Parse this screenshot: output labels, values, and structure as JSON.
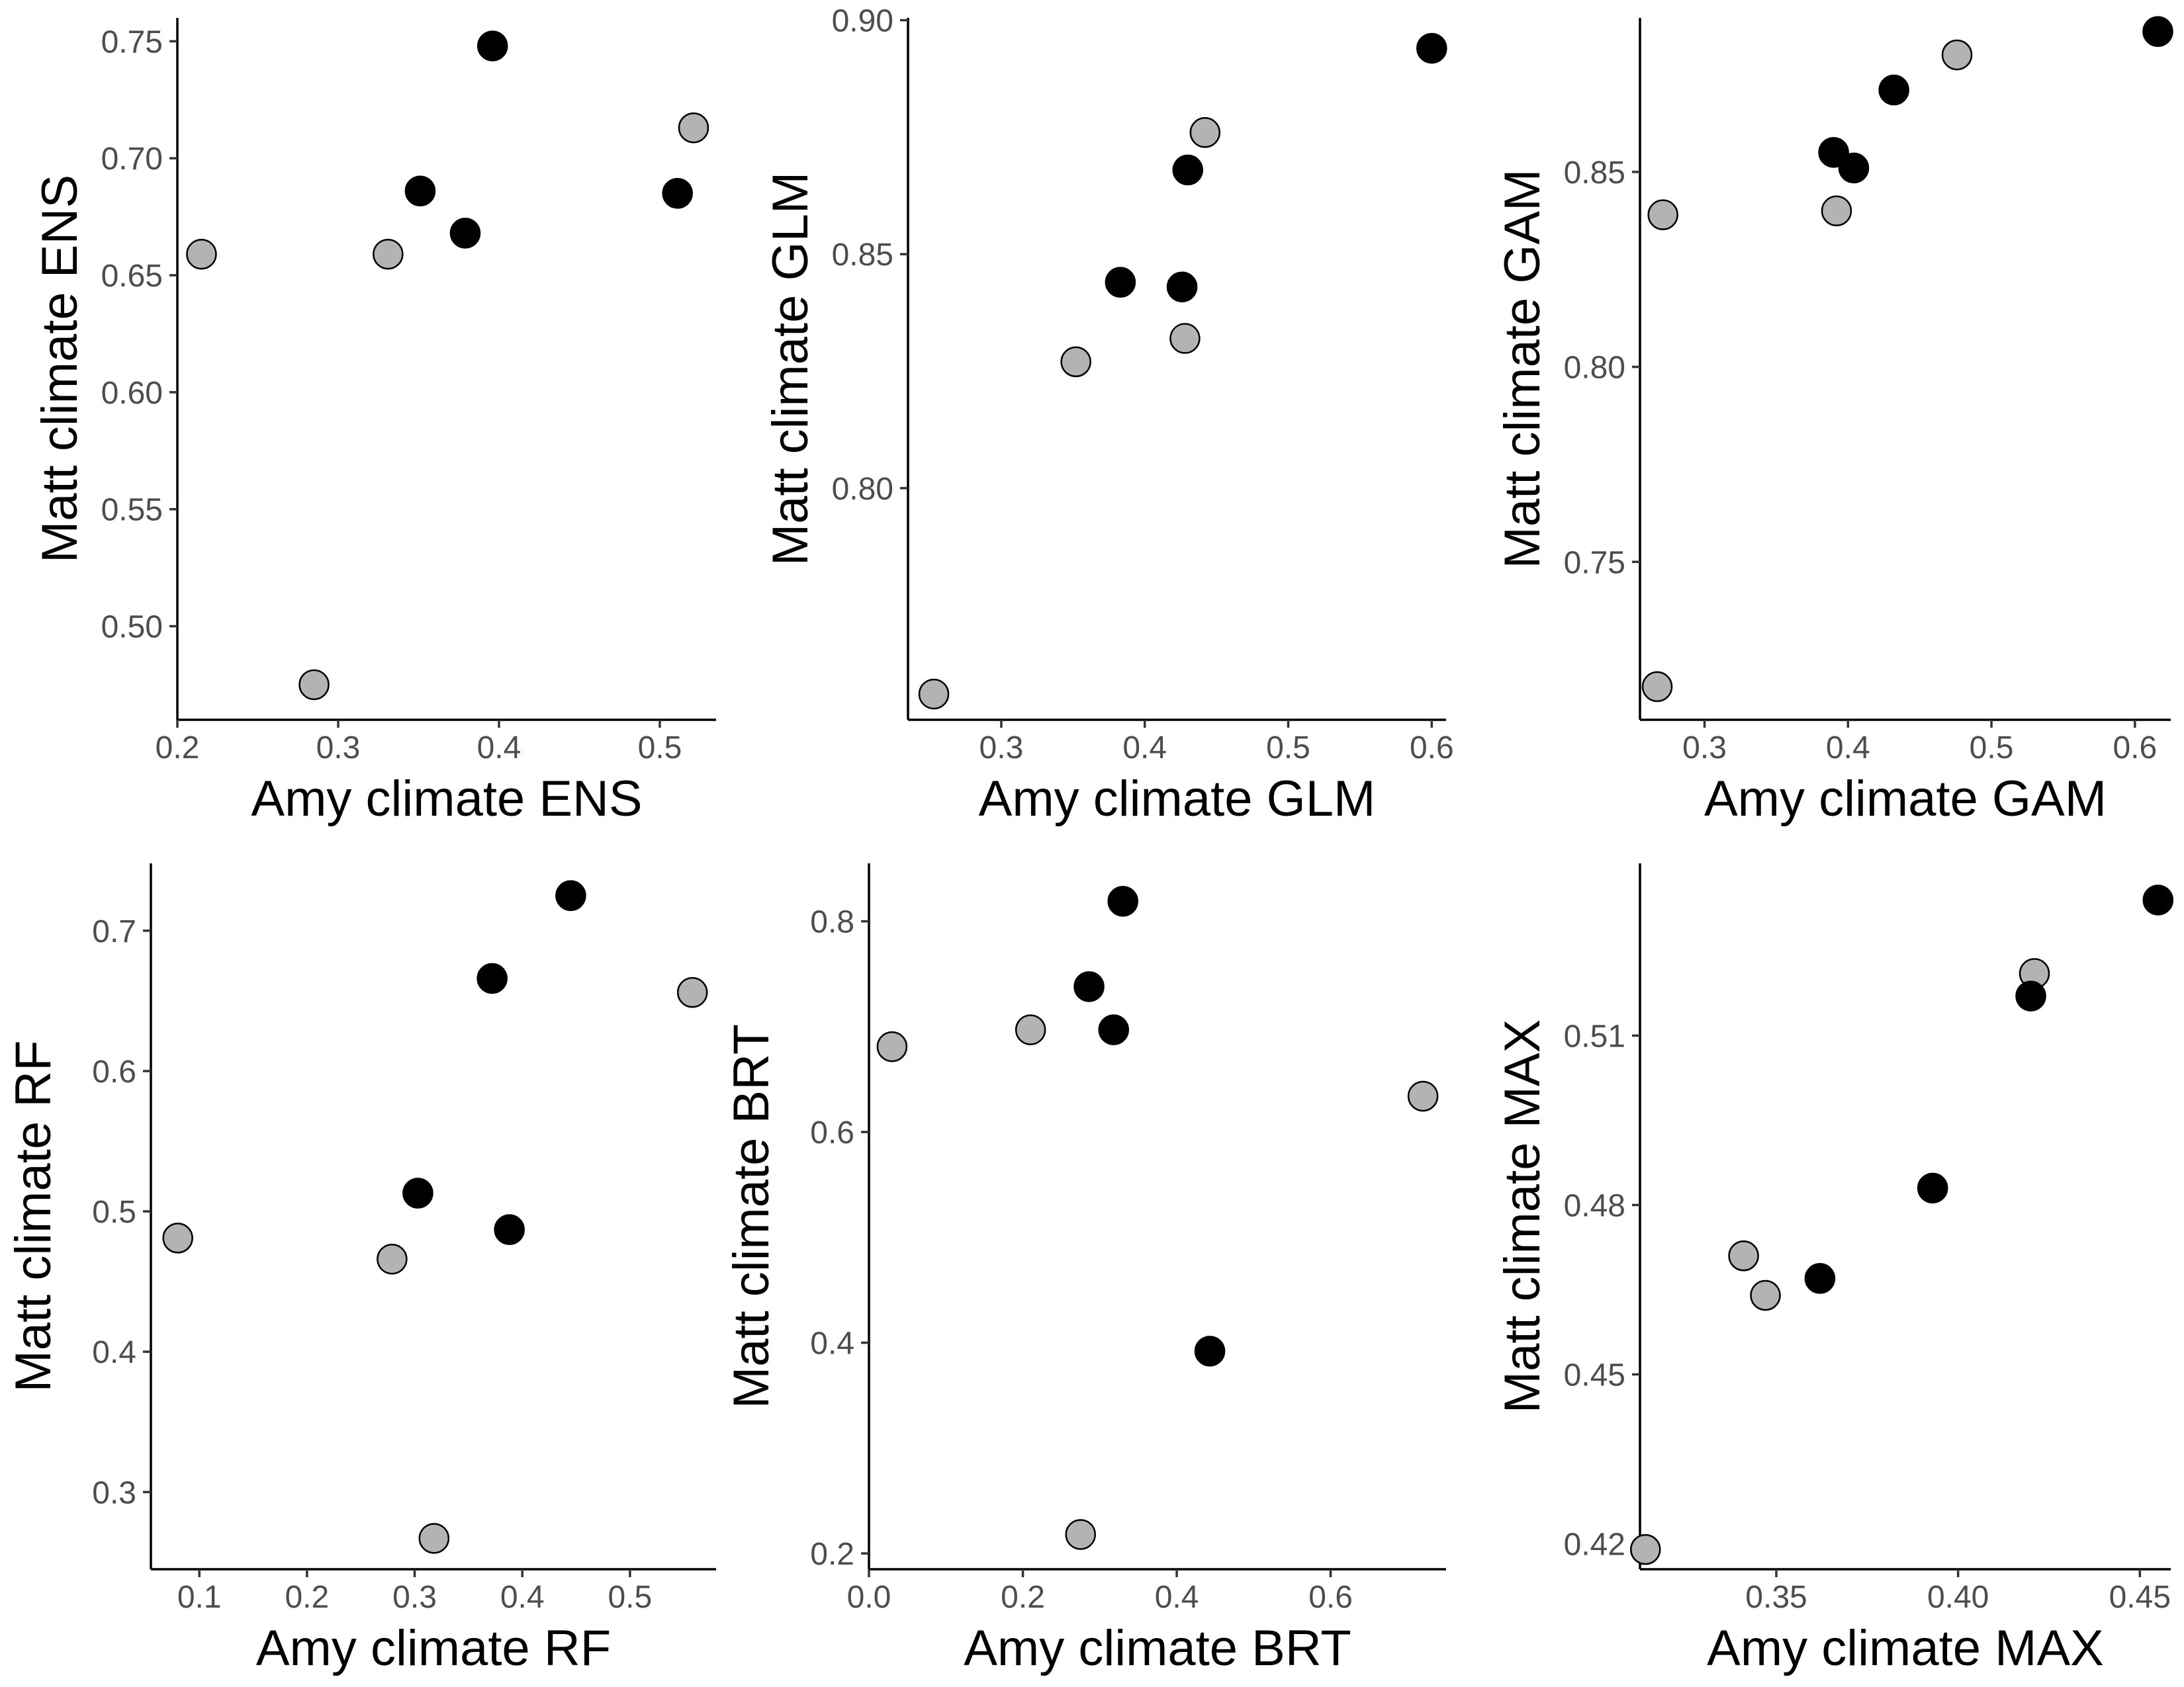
{
  "colors": {
    "grey_point": "#b3b3b3",
    "black_point": "#000000",
    "point_outline": "#000000"
  },
  "chart_data": [
    {
      "type": "scatter",
      "xlabel": "Amy climate ENS",
      "ylabel": "Matt climate ENS",
      "xlim": [
        0.2,
        0.535
      ],
      "ylim": [
        0.46,
        0.76
      ],
      "xticks": [
        0.2,
        0.3,
        0.4,
        0.5
      ],
      "xtick_labels": [
        "0.2",
        "0.3",
        "0.4",
        "0.5"
      ],
      "yticks": [
        0.5,
        0.55,
        0.6,
        0.65,
        0.7,
        0.75
      ],
      "ytick_labels": [
        "0.50",
        "0.55",
        "0.60",
        "0.65",
        "0.70",
        "0.75"
      ],
      "grid": false,
      "legend": "none",
      "series": [
        {
          "color": "#b3b3b3",
          "points": [
            [
              0.215,
              0.659
            ],
            [
              0.285,
              0.475
            ],
            [
              0.331,
              0.659
            ],
            [
              0.521,
              0.713
            ]
          ]
        },
        {
          "color": "#000000",
          "points": [
            [
              0.351,
              0.686
            ],
            [
              0.379,
              0.668
            ],
            [
              0.396,
              0.748
            ],
            [
              0.511,
              0.685
            ]
          ]
        }
      ]
    },
    {
      "type": "scatter",
      "xlabel": "Amy climate GLM",
      "ylabel": "Matt climate GLM",
      "xlim": [
        0.235,
        0.61
      ],
      "ylim": [
        0.7505,
        0.9005
      ],
      "xticks": [
        0.3,
        0.4,
        0.5,
        0.6
      ],
      "xtick_labels": [
        "0.3",
        "0.4",
        "0.5",
        "0.6"
      ],
      "yticks": [
        0.8,
        0.85,
        0.9
      ],
      "ytick_labels": [
        "0.80",
        "0.85",
        "0.90"
      ],
      "grid": false,
      "legend": "none",
      "series": [
        {
          "color": "#b3b3b3",
          "points": [
            [
              0.253,
              0.756
            ],
            [
              0.352,
              0.827
            ],
            [
              0.428,
              0.832
            ],
            [
              0.442,
              0.876
            ]
          ]
        },
        {
          "color": "#000000",
          "points": [
            [
              0.383,
              0.844
            ],
            [
              0.426,
              0.843
            ],
            [
              0.43,
              0.868
            ],
            [
              0.6,
              0.894
            ]
          ]
        }
      ]
    },
    {
      "type": "scatter",
      "xlabel": "Amy climate GAM",
      "ylabel": "Matt climate GAM",
      "xlim": [
        0.255,
        0.625
      ],
      "ylim": [
        0.7095,
        0.8895
      ],
      "xticks": [
        0.3,
        0.4,
        0.5,
        0.6
      ],
      "xtick_labels": [
        "0.3",
        "0.4",
        "0.5",
        "0.6"
      ],
      "yticks": [
        0.75,
        0.8,
        0.85
      ],
      "ytick_labels": [
        "0.75",
        "0.80",
        "0.85"
      ],
      "grid": false,
      "legend": "none",
      "series": [
        {
          "color": "#b3b3b3",
          "points": [
            [
              0.267,
              0.718
            ],
            [
              0.271,
              0.839
            ],
            [
              0.392,
              0.84
            ],
            [
              0.476,
              0.88
            ]
          ]
        },
        {
          "color": "#000000",
          "points": [
            [
              0.39,
              0.855
            ],
            [
              0.404,
              0.851
            ],
            [
              0.432,
              0.871
            ],
            [
              0.616,
              0.886
            ]
          ]
        }
      ]
    },
    {
      "type": "scatter",
      "xlabel": "Amy climate RF",
      "ylabel": "Matt climate RF",
      "xlim": [
        0.055,
        0.58
      ],
      "ylim": [
        0.245,
        0.748
      ],
      "xticks": [
        0.1,
        0.2,
        0.3,
        0.4,
        0.5
      ],
      "xtick_labels": [
        "0.1",
        "0.2",
        "0.3",
        "0.4",
        "0.5"
      ],
      "yticks": [
        0.3,
        0.4,
        0.5,
        0.6,
        0.7
      ],
      "ytick_labels": [
        "0.3",
        "0.4",
        "0.5",
        "0.6",
        "0.7"
      ],
      "grid": false,
      "legend": "none",
      "series": [
        {
          "color": "#b3b3b3",
          "points": [
            [
              0.08,
              0.481
            ],
            [
              0.279,
              0.466
            ],
            [
              0.318,
              0.267
            ],
            [
              0.558,
              0.656
            ]
          ]
        },
        {
          "color": "#000000",
          "points": [
            [
              0.303,
              0.513
            ],
            [
              0.372,
              0.666
            ],
            [
              0.388,
              0.487
            ],
            [
              0.445,
              0.725
            ]
          ]
        }
      ]
    },
    {
      "type": "scatter",
      "xlabel": "Amy climate BRT",
      "ylabel": "Matt climate BRT",
      "xlim": [
        0.0,
        0.75
      ],
      "ylim": [
        0.185,
        0.855
      ],
      "xticks": [
        0.0,
        0.2,
        0.4,
        0.6
      ],
      "xtick_labels": [
        "0.0",
        "0.2",
        "0.4",
        "0.6"
      ],
      "yticks": [
        0.2,
        0.4,
        0.6,
        0.8
      ],
      "ytick_labels": [
        "0.2",
        "0.4",
        "0.6",
        "0.8"
      ],
      "grid": false,
      "legend": "none",
      "series": [
        {
          "color": "#b3b3b3",
          "points": [
            [
              0.03,
              0.681
            ],
            [
              0.21,
              0.697
            ],
            [
              0.275,
              0.218
            ],
            [
              0.72,
              0.634
            ]
          ]
        },
        {
          "color": "#000000",
          "points": [
            [
              0.286,
              0.738
            ],
            [
              0.318,
              0.697
            ],
            [
              0.33,
              0.819
            ],
            [
              0.443,
              0.392
            ]
          ]
        }
      ]
    },
    {
      "type": "scatter",
      "xlabel": "Amy climate MAX",
      "ylabel": "Matt climate MAX",
      "xlim": [
        0.3125,
        0.4585
      ],
      "ylim": [
        0.4155,
        0.5405
      ],
      "xticks": [
        0.35,
        0.4,
        0.45
      ],
      "xtick_labels": [
        "0.35",
        "0.40",
        "0.45"
      ],
      "yticks": [
        0.42,
        0.45,
        0.48,
        0.51
      ],
      "ytick_labels": [
        "0.42",
        "0.45",
        "0.48",
        "0.51"
      ],
      "grid": false,
      "legend": "none",
      "series": [
        {
          "color": "#b3b3b3",
          "points": [
            [
              0.314,
              0.419
            ],
            [
              0.341,
              0.471
            ],
            [
              0.347,
              0.464
            ],
            [
              0.421,
              0.521
            ]
          ]
        },
        {
          "color": "#000000",
          "points": [
            [
              0.362,
              0.467
            ],
            [
              0.393,
              0.483
            ],
            [
              0.42,
              0.517
            ],
            [
              0.455,
              0.534
            ]
          ]
        }
      ]
    }
  ]
}
